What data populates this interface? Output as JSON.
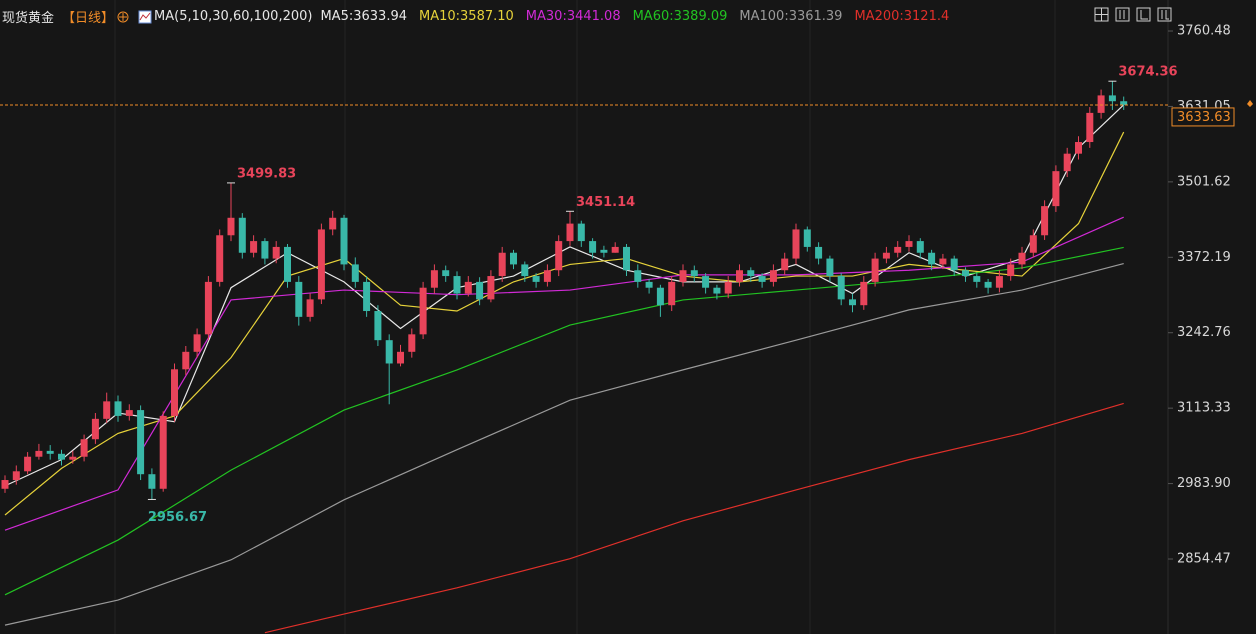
{
  "chart_data": {
    "type": "candlestick",
    "title": "现货黄金",
    "period": "【日线】",
    "indicator": "MA(5,10,30,60,100,200)",
    "ylim": [
      2725.8,
      3813.7
    ],
    "yticks": [
      3760.48,
      3631.05,
      3501.62,
      3372.19,
      3242.76,
      3113.33,
      {
        "value": 2983.9,
        "label": "2983.90"
      },
      2854.47
    ],
    "up_color": "#e8445a",
    "down_color": "#39b8a8",
    "open": [
      2975,
      2990,
      3005,
      3030,
      3040,
      3035,
      3025,
      3030,
      3060,
      3095,
      3125,
      3100,
      3110,
      3000,
      2975,
      3100,
      3180,
      3210,
      3240,
      3330,
      3410,
      3440,
      3380,
      3400,
      3370,
      3390,
      3330,
      3270,
      3300,
      3420,
      3440,
      3360,
      3330,
      3280,
      3230,
      3190,
      3210,
      3240,
      3320,
      3350,
      3340,
      3310,
      3330,
      3300,
      3340,
      3380,
      3360,
      3340,
      3330,
      3350,
      3400,
      3430,
      3400,
      3385,
      3380,
      3390,
      3350,
      3330,
      3320,
      3290,
      3330,
      3350,
      3340,
      3320,
      3310,
      3330,
      3350,
      3340,
      3330,
      3350,
      3370,
      3420,
      3390,
      3370,
      3340,
      3300,
      3290,
      3330,
      3370,
      3380,
      3390,
      3400,
      3380,
      3360,
      3370,
      3350,
      3340,
      3330,
      3320,
      3340,
      3360,
      3380,
      3410,
      3460,
      3520,
      3550,
      3570,
      3620,
      3650,
      3640
    ],
    "high": [
      2998,
      3015,
      3038,
      3052,
      3050,
      3042,
      3040,
      3068,
      3105,
      3140,
      3135,
      3120,
      3118,
      3010,
      3108,
      3190,
      3220,
      3250,
      3340,
      3420,
      3499.83,
      3448,
      3410,
      3405,
      3400,
      3395,
      3340,
      3310,
      3430,
      3452,
      3445,
      3372,
      3340,
      3290,
      3240,
      3222,
      3250,
      3330,
      3360,
      3358,
      3348,
      3340,
      3338,
      3350,
      3390,
      3385,
      3365,
      3345,
      3360,
      3410,
      3451.14,
      3435,
      3405,
      3392,
      3398,
      3395,
      3360,
      3335,
      3325,
      3340,
      3360,
      3358,
      3345,
      3325,
      3340,
      3360,
      3355,
      3345,
      3360,
      3380,
      3430,
      3425,
      3398,
      3375,
      3345,
      3310,
      3340,
      3380,
      3390,
      3400,
      3410,
      3405,
      3385,
      3378,
      3375,
      3355,
      3345,
      3335,
      3350,
      3370,
      3390,
      3420,
      3470,
      3530,
      3560,
      3580,
      3630,
      3660,
      3674.36,
      3648
    ],
    "low": [
      2968,
      2982,
      3000,
      3025,
      3025,
      3015,
      3018,
      3022,
      3052,
      3088,
      3090,
      3092,
      2990,
      2956.67,
      2970,
      3090,
      3170,
      3200,
      3230,
      3322,
      3400,
      3370,
      3372,
      3360,
      3362,
      3320,
      3255,
      3262,
      3292,
      3410,
      3350,
      3320,
      3270,
      3220,
      3120,
      3185,
      3200,
      3232,
      3310,
      3330,
      3300,
      3305,
      3290,
      3295,
      3330,
      3352,
      3330,
      3320,
      3322,
      3340,
      3392,
      3390,
      3370,
      3372,
      3380,
      3340,
      3320,
      3310,
      3270,
      3280,
      3322,
      3330,
      3310,
      3300,
      3302,
      3322,
      3330,
      3320,
      3322,
      3342,
      3360,
      3382,
      3360,
      3330,
      3290,
      3278,
      3282,
      3322,
      3362,
      3372,
      3382,
      3370,
      3350,
      3352,
      3340,
      3330,
      3320,
      3310,
      3312,
      3332,
      3352,
      3372,
      3402,
      3450,
      3510,
      3540,
      3560,
      3610,
      3625,
      3625
    ],
    "close": [
      2990,
      3005,
      3030,
      3040,
      3035,
      3025,
      3030,
      3060,
      3095,
      3125,
      3100,
      3110,
      3000,
      2975,
      3100,
      3180,
      3210,
      3240,
      3330,
      3410,
      3440,
      3380,
      3400,
      3370,
      3390,
      3330,
      3270,
      3300,
      3420,
      3440,
      3360,
      3330,
      3280,
      3230,
      3190,
      3210,
      3240,
      3320,
      3350,
      3340,
      3310,
      3330,
      3300,
      3340,
      3380,
      3360,
      3340,
      3330,
      3350,
      3400,
      3430,
      3400,
      3380,
      3380,
      3390,
      3350,
      3330,
      3320,
      3290,
      3330,
      3350,
      3340,
      3320,
      3310,
      3330,
      3350,
      3340,
      3330,
      3350,
      3370,
      3420,
      3390,
      3370,
      3340,
      3300,
      3290,
      3330,
      3370,
      3380,
      3390,
      3400,
      3380,
      3360,
      3370,
      3350,
      3340,
      3330,
      3320,
      3340,
      3360,
      3380,
      3410,
      3460,
      3520,
      3550,
      3570,
      3620,
      3650,
      3640,
      3633.63
    ],
    "high_labels": [
      3499.83,
      3451.14,
      3674.36
    ],
    "low_labels": [
      2956.67
    ],
    "series": [
      {
        "name": "MA5:3633.94",
        "color": "#e8e8e8",
        "x": [
          0,
          5,
          10,
          15,
          20,
          25,
          30,
          35,
          40,
          45,
          50,
          55,
          60,
          65,
          70,
          75,
          80,
          85,
          90,
          95,
          99
        ],
        "values": [
          2980,
          3025,
          3105,
          3090,
          3320,
          3380,
          3330,
          3250,
          3320,
          3340,
          3390,
          3350,
          3330,
          3330,
          3360,
          3310,
          3380,
          3340,
          3370,
          3560,
          3633.94
        ]
      },
      {
        "name": "MA10:3587.10",
        "color": "#e6d23a",
        "x": [
          0,
          5,
          10,
          15,
          20,
          25,
          30,
          35,
          40,
          45,
          50,
          55,
          60,
          65,
          70,
          75,
          80,
          85,
          90,
          95,
          99
        ],
        "values": [
          2930,
          3010,
          3070,
          3100,
          3200,
          3340,
          3370,
          3290,
          3280,
          3330,
          3360,
          3370,
          3340,
          3330,
          3340,
          3340,
          3360,
          3350,
          3340,
          3430,
          3587.1
        ]
      },
      {
        "name": "MA30:3441.08",
        "color": "#d12ad6",
        "x": [
          0,
          10,
          20,
          30,
          40,
          50,
          60,
          70,
          80,
          90,
          99
        ],
        "values": [
          2904,
          2973,
          3299,
          3316,
          3308,
          3316,
          3342,
          3342,
          3350,
          3364,
          3441.08
        ]
      },
      {
        "name": "MA60:3389.09",
        "color": "#22c322",
        "x": [
          0,
          10,
          20,
          30,
          40,
          50,
          60,
          70,
          80,
          90,
          99
        ],
        "values": [
          2793,
          2887,
          3007,
          3110,
          3179,
          3256,
          3299,
          3316,
          3333,
          3354,
          3389.09
        ]
      },
      {
        "name": "MA100:3361.39",
        "color": "#9a9a9a",
        "x": [
          0,
          10,
          20,
          30,
          40,
          50,
          60,
          70,
          80,
          90,
          99
        ],
        "values": [
          2741,
          2784,
          2853,
          2956,
          3042,
          3127,
          3179,
          3230,
          3282,
          3316,
          3361.39
        ]
      },
      {
        "name": "MA200:3121.4",
        "color": "#e0302a",
        "x": [
          23,
          30,
          40,
          50,
          60,
          70,
          80,
          90,
          99
        ],
        "values": [
          2728,
          2760,
          2805,
          2855,
          2920,
          2973,
          3025,
          3070,
          3121.4
        ]
      }
    ]
  }
}
